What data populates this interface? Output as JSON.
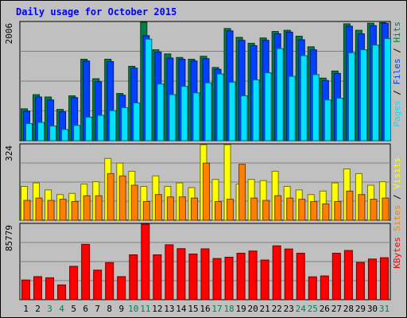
{
  "chart_data": {
    "type": "bar",
    "title": "Daily usage for October 2015",
    "days": [
      "1",
      "2",
      "3",
      "4",
      "5",
      "6",
      "7",
      "8",
      "9",
      "10",
      "11",
      "12",
      "13",
      "14",
      "15",
      "16",
      "17",
      "18",
      "19",
      "20",
      "21",
      "22",
      "23",
      "24",
      "25",
      "26",
      "27",
      "28",
      "29",
      "30",
      "31"
    ],
    "weekend_days": [
      "3",
      "4",
      "10",
      "11",
      "17",
      "18",
      "24",
      "25",
      "31"
    ],
    "panels": [
      {
        "name": "hits-files-pages",
        "max_label": "2006",
        "ymax": 2006,
        "series": [
          {
            "name": "Hits",
            "color": "#008040",
            "values": [
              540,
              780,
              740,
              530,
              760,
              1380,
              1050,
              1380,
              800,
              1260,
              2006,
              1540,
              1470,
              1410,
              1380,
              1430,
              1240,
              1900,
              1750,
              1650,
              1740,
              1850,
              1870,
              1770,
              1590,
              1060,
              1180,
              1980,
              1870,
              1990,
              2000
            ]
          },
          {
            "name": "Files",
            "color": "#0040ff",
            "values": [
              500,
              740,
              690,
              490,
              730,
              1350,
              1000,
              1340,
              770,
              1230,
              1780,
              1500,
              1400,
              1380,
              1350,
              1390,
              1210,
              1860,
              1700,
              1610,
              1700,
              1810,
              1840,
              1710,
              1540,
              1020,
              1140,
              1940,
              1810,
              1950,
              1990
            ]
          },
          {
            "name": "Pages",
            "color": "#00e0ff",
            "values": [
              290,
              310,
              250,
              190,
              260,
              400,
              430,
              510,
              560,
              640,
              1720,
              960,
              780,
              920,
              810,
              980,
              1130,
              990,
              760,
              1030,
              1150,
              1560,
              1090,
              1440,
              1120,
              690,
              720,
              1490,
              1540,
              1620,
              1730
            ]
          }
        ]
      },
      {
        "name": "sites-visits",
        "max_label": "324",
        "ymax": 324,
        "series": [
          {
            "name": "Visits",
            "color": "#ffff00",
            "values": [
              145,
              160,
              130,
              110,
              115,
              155,
              165,
              265,
              245,
              210,
              145,
              190,
              145,
              160,
              140,
              324,
              175,
              324,
              155,
              175,
              170,
              210,
              145,
              130,
              110,
              125,
              160,
              220,
              200,
              150,
              165
            ]
          },
          {
            "name": "Sites",
            "color": "#ff8000",
            "values": [
              85,
              95,
              85,
              90,
              80,
              105,
              105,
              200,
              190,
              150,
              80,
              110,
              100,
              100,
              95,
              245,
              80,
              90,
              240,
              95,
              85,
              105,
              95,
              90,
              80,
              70,
              80,
              125,
              110,
              90,
              95
            ]
          }
        ]
      },
      {
        "name": "kbytes",
        "max_label": "85779",
        "ymax": 85779,
        "series": [
          {
            "name": "KBytes",
            "color": "#ff0000",
            "values": [
              22400,
              26200,
              24900,
              16800,
              37900,
              62900,
              33600,
              42100,
              26200,
              51000,
              85779,
              51000,
              62400,
              58000,
              51900,
              57800,
              46800,
              48300,
              52800,
              55300,
              45100,
              61200,
              57600,
              52800,
              26000,
              27000,
              52800,
              55900,
              42300,
              46200,
              47700
            ]
          }
        ]
      }
    ],
    "legend_right": {
      "top": [
        {
          "text": "Pages",
          "color": "#00e0ff"
        },
        {
          "text": " / ",
          "color": "#000000"
        },
        {
          "text": "Files",
          "color": "#0040ff"
        },
        {
          "text": " / ",
          "color": "#000000"
        },
        {
          "text": "Hits",
          "color": "#008040"
        }
      ],
      "middle": [
        {
          "text": "Sites",
          "color": "#ff8000"
        },
        {
          "text": " / ",
          "color": "#000000"
        },
        {
          "text": "Visits",
          "color": "#ffff00"
        }
      ],
      "bottom": [
        {
          "text": "KBytes",
          "color": "#ff0000"
        }
      ]
    },
    "colors": {
      "background": "#c0c0c0",
      "weekday_label": "#000000",
      "weekend_label": "#00805c",
      "title": "#0000ff"
    }
  }
}
